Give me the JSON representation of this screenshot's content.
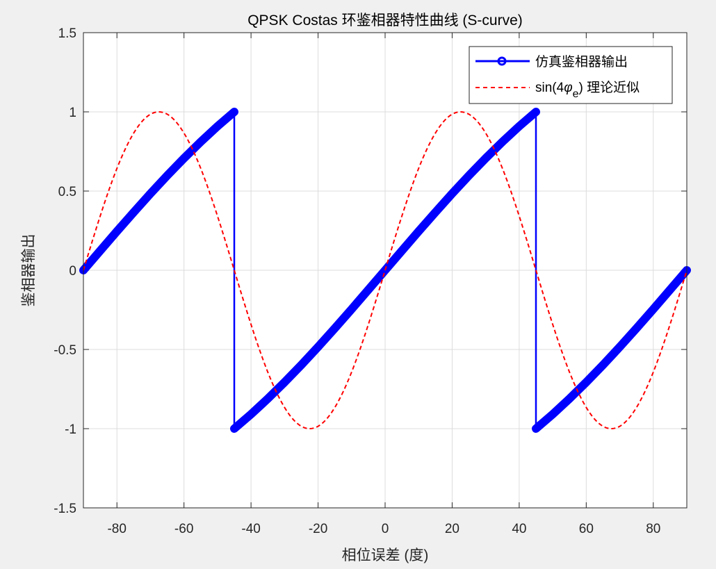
{
  "chart_data": {
    "type": "line",
    "title": "QPSK Costas 环鉴相器特性曲线 (S-curve)",
    "xlabel": "相位误差 (度)",
    "ylabel": "鉴相器输出",
    "xlim": [
      -90,
      90
    ],
    "ylim": [
      -1.5,
      1.5
    ],
    "xticks": [
      -80,
      -60,
      -40,
      -20,
      0,
      20,
      40,
      60,
      80
    ],
    "yticks": [
      -1.5,
      -1,
      -0.5,
      0,
      0.5,
      1,
      1.5
    ],
    "xtick_labels": [
      "-80",
      "-60",
      "-40",
      "-20",
      "0",
      "20",
      "40",
      "60",
      "80"
    ],
    "ytick_labels": [
      "-1.5",
      "-1",
      "-0.5",
      "0",
      "0.5",
      "1",
      "1.5"
    ],
    "grid": true,
    "legend_position": "top-right",
    "series": [
      {
        "name": "仿真鉴相器输出",
        "color": "#0000ff",
        "style": "solid-with-circle-markers",
        "x": [
          -90,
          -85,
          -80,
          -75,
          -70,
          -65,
          -60,
          -55,
          -50,
          -45,
          -45,
          -40,
          -35,
          -30,
          -25,
          -20,
          -15,
          -10,
          -5,
          0,
          5,
          10,
          15,
          20,
          25,
          30,
          35,
          40,
          45,
          45,
          50,
          55,
          60,
          65,
          70,
          75,
          80,
          85,
          90
        ],
        "y": [
          0,
          0.123,
          0.246,
          0.366,
          0.484,
          0.598,
          0.707,
          0.811,
          0.909,
          1,
          -1,
          -0.909,
          -0.811,
          -0.707,
          -0.598,
          -0.484,
          -0.366,
          -0.246,
          -0.123,
          0,
          0.123,
          0.246,
          0.366,
          0.484,
          0.598,
          0.707,
          0.811,
          0.909,
          1,
          -1,
          -0.909,
          -0.811,
          -0.707,
          -0.598,
          -0.484,
          -0.366,
          -0.246,
          -0.123,
          0
        ]
      },
      {
        "name": "sin(4φe) 理论近似",
        "legend_main": "sin(4",
        "legend_phi": "φ",
        "legend_sub": "e",
        "legend_tail": ") 理论近似",
        "color": "#ff0000",
        "style": "dashed",
        "x_start": -90,
        "x_step": 2.5,
        "y": [
          0,
          0.174,
          0.342,
          0.5,
          0.643,
          0.766,
          0.866,
          0.94,
          0.985,
          1,
          0.985,
          0.94,
          0.866,
          0.766,
          0.643,
          0.5,
          0.342,
          0.174,
          0,
          -0.174,
          -0.342,
          -0.5,
          -0.643,
          -0.766,
          -0.866,
          -0.94,
          -0.985,
          -1,
          -0.985,
          -0.94,
          -0.866,
          -0.766,
          -0.643,
          -0.5,
          -0.342,
          -0.174,
          0,
          0.174,
          0.342,
          0.5,
          0.643,
          0.766,
          0.866,
          0.94,
          0.985,
          1,
          0.985,
          0.94,
          0.866,
          0.766,
          0.643,
          0.5,
          0.342,
          0.174,
          0,
          -0.174,
          -0.342,
          -0.5,
          -0.643,
          -0.766,
          -0.866,
          -0.94,
          -0.985,
          -1,
          -0.985,
          -0.94,
          -0.866,
          -0.766,
          -0.643,
          -0.5,
          -0.342,
          -0.174,
          0
        ]
      }
    ]
  }
}
